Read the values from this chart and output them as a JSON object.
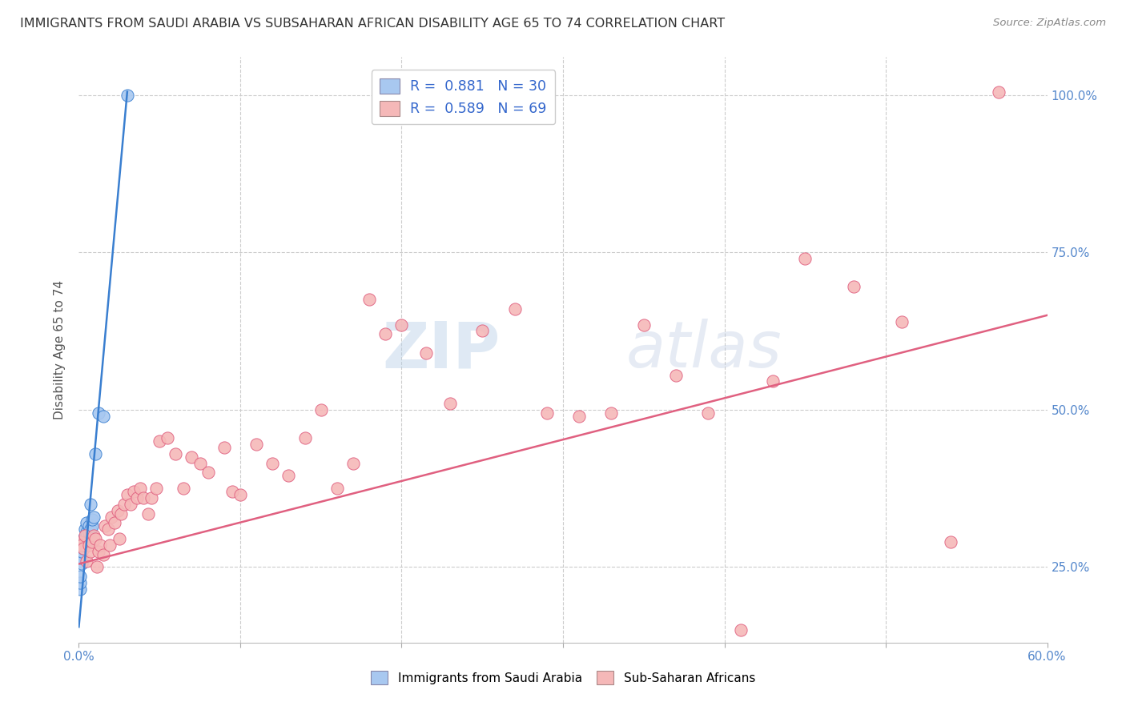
{
  "title": "IMMIGRANTS FROM SAUDI ARABIA VS SUBSAHARAN AFRICAN DISABILITY AGE 65 TO 74 CORRELATION CHART",
  "source": "Source: ZipAtlas.com",
  "ylabel": "Disability Age 65 to 74",
  "xmin": 0.0,
  "xmax": 0.6,
  "ymin": 0.13,
  "ymax": 1.06,
  "legend_R1": "0.881",
  "legend_N1": "30",
  "legend_R2": "0.589",
  "legend_N2": "69",
  "color_blue": "#A8C8F0",
  "color_blue_line": "#3A7FD0",
  "color_pink": "#F5B8B8",
  "color_pink_line": "#E06080",
  "watermark_zip": "ZIP",
  "watermark_atlas": "atlas",
  "blue_scatter_x": [
    0.001,
    0.001,
    0.001,
    0.002,
    0.002,
    0.002,
    0.003,
    0.003,
    0.003,
    0.003,
    0.004,
    0.004,
    0.004,
    0.004,
    0.005,
    0.005,
    0.005,
    0.005,
    0.006,
    0.006,
    0.006,
    0.007,
    0.007,
    0.008,
    0.008,
    0.009,
    0.01,
    0.012,
    0.015,
    0.03
  ],
  "blue_scatter_y": [
    0.215,
    0.225,
    0.235,
    0.255,
    0.265,
    0.275,
    0.28,
    0.285,
    0.29,
    0.295,
    0.285,
    0.29,
    0.295,
    0.31,
    0.29,
    0.3,
    0.305,
    0.32,
    0.295,
    0.305,
    0.315,
    0.31,
    0.35,
    0.315,
    0.325,
    0.33,
    0.43,
    0.495,
    0.49,
    1.0
  ],
  "blue_line_x0": 0.0,
  "blue_line_y0": 0.155,
  "blue_line_x1": 0.03,
  "blue_line_y1": 1.005,
  "pink_scatter_x": [
    0.001,
    0.002,
    0.003,
    0.004,
    0.005,
    0.006,
    0.007,
    0.008,
    0.009,
    0.01,
    0.011,
    0.012,
    0.013,
    0.015,
    0.016,
    0.018,
    0.019,
    0.02,
    0.022,
    0.024,
    0.025,
    0.026,
    0.028,
    0.03,
    0.032,
    0.034,
    0.036,
    0.038,
    0.04,
    0.043,
    0.045,
    0.048,
    0.05,
    0.055,
    0.06,
    0.065,
    0.07,
    0.075,
    0.08,
    0.09,
    0.095,
    0.1,
    0.11,
    0.12,
    0.13,
    0.14,
    0.15,
    0.16,
    0.17,
    0.18,
    0.19,
    0.2,
    0.215,
    0.23,
    0.25,
    0.27,
    0.29,
    0.31,
    0.33,
    0.35,
    0.37,
    0.39,
    0.41,
    0.43,
    0.45,
    0.48,
    0.51,
    0.54,
    0.57
  ],
  "pink_scatter_y": [
    0.29,
    0.285,
    0.28,
    0.3,
    0.26,
    0.285,
    0.275,
    0.29,
    0.3,
    0.295,
    0.25,
    0.275,
    0.285,
    0.27,
    0.315,
    0.31,
    0.285,
    0.33,
    0.32,
    0.34,
    0.295,
    0.335,
    0.35,
    0.365,
    0.35,
    0.37,
    0.36,
    0.375,
    0.36,
    0.335,
    0.36,
    0.375,
    0.45,
    0.455,
    0.43,
    0.375,
    0.425,
    0.415,
    0.4,
    0.44,
    0.37,
    0.365,
    0.445,
    0.415,
    0.395,
    0.455,
    0.5,
    0.375,
    0.415,
    0.675,
    0.62,
    0.635,
    0.59,
    0.51,
    0.625,
    0.66,
    0.495,
    0.49,
    0.495,
    0.635,
    0.555,
    0.495,
    0.15,
    0.545,
    0.74,
    0.695,
    0.64,
    0.29,
    1.005
  ],
  "pink_line_x0": 0.0,
  "pink_line_y0": 0.255,
  "pink_line_x1": 0.6,
  "pink_line_y1": 0.65
}
